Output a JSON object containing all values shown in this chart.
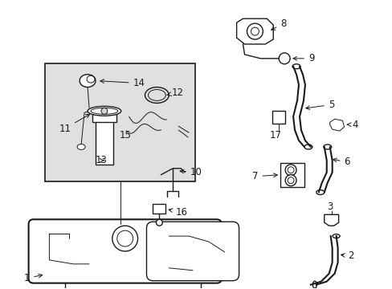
{
  "bg_color": "#ffffff",
  "line_color": "#1a1a1a",
  "box_bg": "#e0e0e0",
  "font_size": 8.5,
  "anno_fontsize": 8.5
}
